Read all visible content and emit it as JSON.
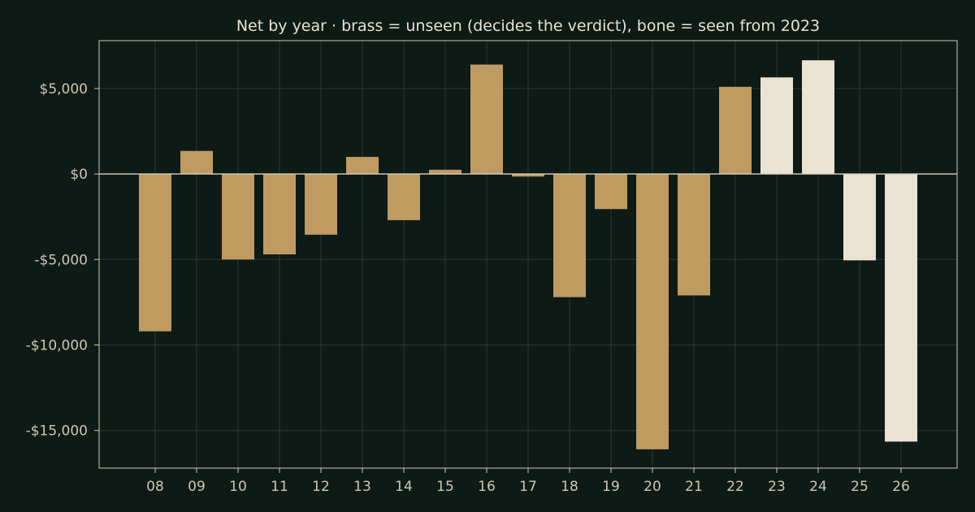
{
  "chart_data": {
    "type": "bar",
    "title": "Net by year  ·  brass = unseen (decides the verdict), bone = seen from 2023",
    "xlabel": "",
    "ylabel": "",
    "categories": [
      "08",
      "09",
      "10",
      "11",
      "12",
      "13",
      "14",
      "15",
      "16",
      "17",
      "18",
      "19",
      "20",
      "21",
      "22",
      "23",
      "24",
      "25",
      "26"
    ],
    "values": [
      -9200,
      1350,
      -5000,
      -4700,
      -3550,
      1000,
      -2700,
      250,
      6400,
      -150,
      -7200,
      -2050,
      -16100,
      -7100,
      5100,
      5650,
      6650,
      -5050,
      -15650
    ],
    "groups": [
      "unseen",
      "unseen",
      "unseen",
      "unseen",
      "unseen",
      "unseen",
      "unseen",
      "unseen",
      "unseen",
      "unseen",
      "unseen",
      "unseen",
      "unseen",
      "unseen",
      "unseen",
      "seen",
      "seen",
      "seen",
      "seen"
    ],
    "ylim": [
      -17200,
      7800
    ],
    "yticks": [
      5000,
      0,
      -5000,
      -10000,
      -15000
    ],
    "ytick_labels": [
      "$5,000",
      "$0",
      "-$5,000",
      "-$10,000",
      "-$15,000"
    ],
    "grid": true,
    "legend": "none",
    "colors": {
      "unseen": "#bf9b62",
      "seen": "#ebe3d1",
      "background": "#0e1a16",
      "axis": "#cfc7b0",
      "grid": "#2b3a33",
      "zero_line": "#d8d0bc"
    }
  }
}
